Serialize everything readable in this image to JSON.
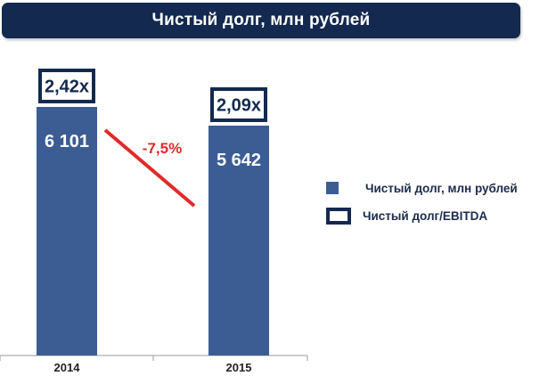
{
  "colors": {
    "title_bg": "#13294f",
    "bar": "#3b5d93",
    "ratio_box": "#13294f",
    "change": "#e02a2a",
    "axis": "#999999"
  },
  "chart_data": {
    "type": "bar",
    "title": "Чистый долг, млн рублей",
    "categories": [
      "2014",
      "2015"
    ],
    "series": [
      {
        "name": "Чистый долг, млн рублей",
        "values": [
          6101,
          5642
        ],
        "value_labels": [
          "6 101",
          "5 642"
        ]
      },
      {
        "name": "Чистый долг/EBITDA",
        "values": [
          2.42,
          2.09
        ],
        "value_labels": [
          "2,42x",
          "2,09x"
        ]
      }
    ],
    "annotation": "-7,5%",
    "legend_position": "right",
    "grid": false
  }
}
